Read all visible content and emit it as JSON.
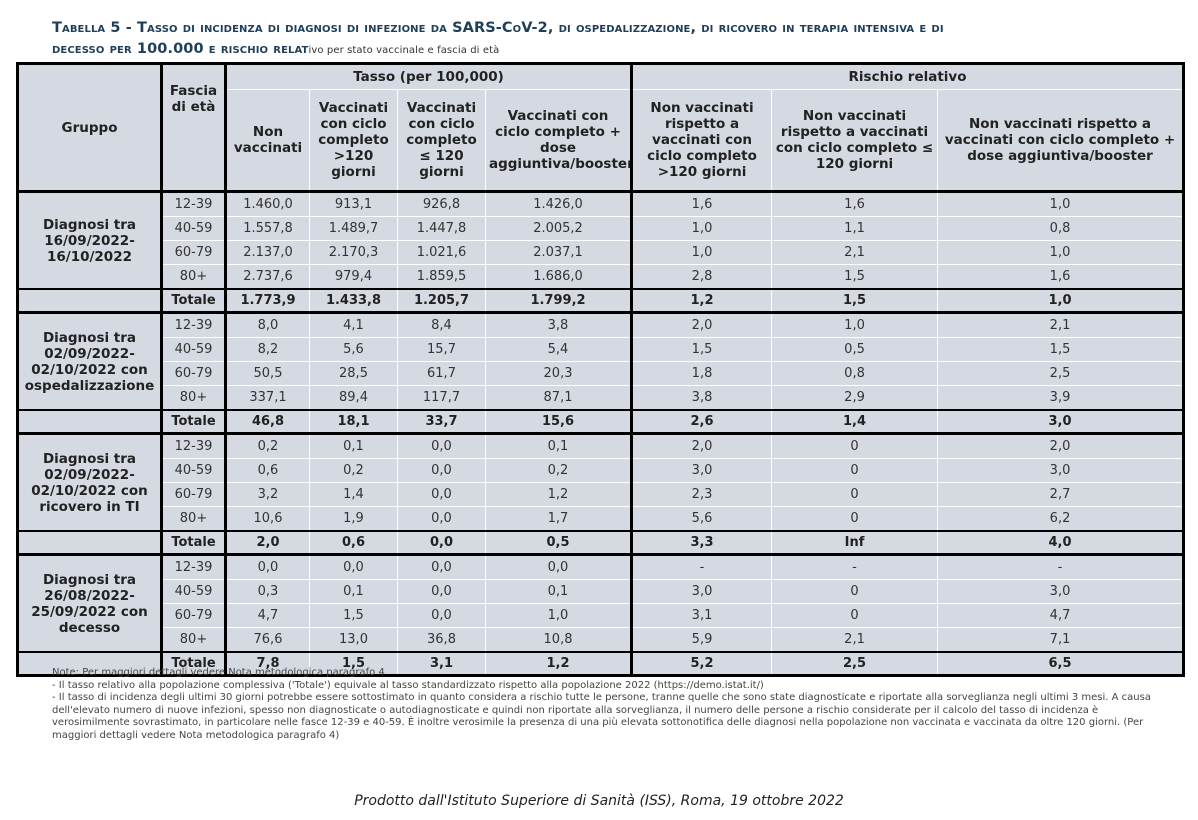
{
  "header": {
    "title_line1": "Tabella 5 - Tasso di incidenza di diagnosi di infezione da SARS-CoV-2, di ospedalizzazione, di ricovero in terapia intensiva e di",
    "title_line2": "decesso per 100.000 e rischio relat",
    "title_tail": "ivo per stato vaccinale e fascia di età"
  },
  "table": {
    "group_header": "Gruppo",
    "age_header": "Fascia di età",
    "rate_header": "Tasso (per 100,000)",
    "risk_header": "Rischio relativo",
    "columns": [
      "Non vaccinati",
      "Vaccinati con ciclo completo >120 giorni",
      "Vaccinati con ciclo completo ≤ 120 giorni",
      "Vaccinati con ciclo completo + dose aggiuntiva/booster",
      "Non vaccinati rispetto a vaccinati con ciclo completo >120 giorni",
      "Non vaccinati rispetto a vaccinati con ciclo completo ≤ 120 giorni",
      "Non vaccinati rispetto a vaccinati con ciclo completo + dose aggiuntiva/booster"
    ],
    "groups": [
      {
        "label": "Diagnosi tra 16/09/2022-16/10/2022",
        "rows": [
          [
            "12-39",
            "1.460,0",
            "913,1",
            "926,8",
            "1.426,0",
            "1,6",
            "1,6",
            "1,0"
          ],
          [
            "40-59",
            "1.557,8",
            "1.489,7",
            "1.447,8",
            "2.005,2",
            "1,0",
            "1,1",
            "0,8"
          ],
          [
            "60-79",
            "2.137,0",
            "2.170,3",
            "1.021,6",
            "2.037,1",
            "1,0",
            "2,1",
            "1,0"
          ],
          [
            "80+",
            "2.737,6",
            "979,4",
            "1.859,5",
            "1.686,0",
            "2,8",
            "1,5",
            "1,6"
          ]
        ],
        "total": [
          "Totale",
          "1.773,9",
          "1.433,8",
          "1.205,7",
          "1.799,2",
          "1,2",
          "1,5",
          "1,0"
        ]
      },
      {
        "label": "Diagnosi tra 02/09/2022-02/10/2022 con ospedalizzazione",
        "rows": [
          [
            "12-39",
            "8,0",
            "4,1",
            "8,4",
            "3,8",
            "2,0",
            "1,0",
            "2,1"
          ],
          [
            "40-59",
            "8,2",
            "5,6",
            "15,7",
            "5,4",
            "1,5",
            "0,5",
            "1,5"
          ],
          [
            "60-79",
            "50,5",
            "28,5",
            "61,7",
            "20,3",
            "1,8",
            "0,8",
            "2,5"
          ],
          [
            "80+",
            "337,1",
            "89,4",
            "117,7",
            "87,1",
            "3,8",
            "2,9",
            "3,9"
          ]
        ],
        "total": [
          "Totale",
          "46,8",
          "18,1",
          "33,7",
          "15,6",
          "2,6",
          "1,4",
          "3,0"
        ]
      },
      {
        "label": "Diagnosi tra 02/09/2022-02/10/2022 con ricovero in TI",
        "rows": [
          [
            "12-39",
            "0,2",
            "0,1",
            "0,0",
            "0,1",
            "2,0",
            "0",
            "2,0"
          ],
          [
            "40-59",
            "0,6",
            "0,2",
            "0,0",
            "0,2",
            "3,0",
            "0",
            "3,0"
          ],
          [
            "60-79",
            "3,2",
            "1,4",
            "0,0",
            "1,2",
            "2,3",
            "0",
            "2,7"
          ],
          [
            "80+",
            "10,6",
            "1,9",
            "0,0",
            "1,7",
            "5,6",
            "0",
            "6,2"
          ]
        ],
        "total": [
          "Totale",
          "2,0",
          "0,6",
          "0,0",
          "0,5",
          "3,3",
          "Inf",
          "4,0"
        ]
      },
      {
        "label": "Diagnosi tra 26/08/2022-25/09/2022 con decesso",
        "rows": [
          [
            "12-39",
            "0,0",
            "0,0",
            "0,0",
            "0,0",
            "-",
            "-",
            "-"
          ],
          [
            "40-59",
            "0,3",
            "0,1",
            "0,0",
            "0,1",
            "3,0",
            "0",
            "3,0"
          ],
          [
            "60-79",
            "4,7",
            "1,5",
            "0,0",
            "1,0",
            "3,1",
            "0",
            "4,7"
          ],
          [
            "80+",
            "76,6",
            "13,0",
            "36,8",
            "10,8",
            "5,9",
            "2,1",
            "7,1"
          ]
        ],
        "total": [
          "Totale",
          "7,8",
          "1,5",
          "3,1",
          "1,2",
          "5,2",
          "2,5",
          "6,5"
        ]
      }
    ]
  },
  "notes": [
    "Note: Per maggiori dettagli vedere Nota metodologica paragrafo 4",
    "- Il tasso relativo alla popolazione complessiva ('Totale') equivale al tasso standardizzato rispetto alla popolazione 2022 (https://demo.istat.it/)",
    "- Il tasso di incidenza degli ultimi 30 giorni potrebbe essere sottostimato in quanto considera a rischio tutte le persone, tranne quelle che sono state diagnosticate e riportate alla sorveglianza negli ultimi 3 mesi. A causa dell'elevato numero di nuove infezioni, spesso non diagnosticate o autodiagnosticate e quindi non riportate alla sorveglianza, il numero delle persone a rischio considerate per il calcolo del tasso di incidenza è verosimilmente sovrastimato, in particolare nelle fasce 12-39 e 40-59. È inoltre verosimile la presenza di una più elevata sottonotifica delle diagnosi nella popolazione non vaccinata e vaccinata da oltre 120 giorni. (Per maggiori dettagli vedere Nota metodologica paragrafo 4)"
  ],
  "footer": "Prodotto dall'Istituto Superiore di Sanità (ISS), Roma, 19 ottobre 2022"
}
